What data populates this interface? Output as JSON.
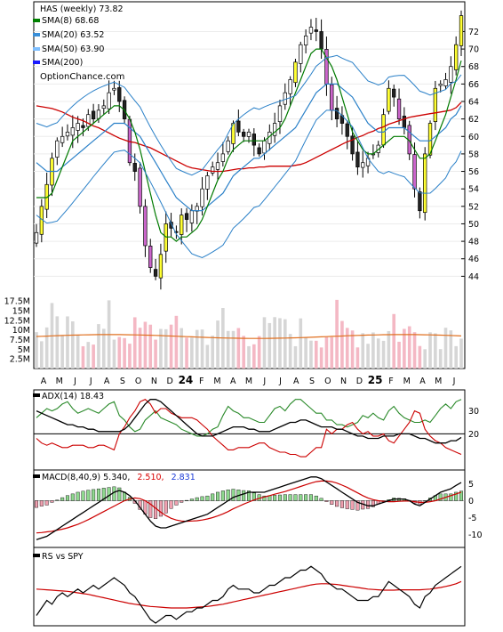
{
  "chart_data": [
    {
      "type": "candlestick",
      "title": "HAS (weekly) 73.82",
      "legend": [
        {
          "label": "SMA(8) 68.68",
          "color": "#008000"
        },
        {
          "label": "SMA(20) 63.52",
          "color": "#3a8fd8"
        },
        {
          "label": "SMA(50) 63.90",
          "color": "#7fbfff"
        },
        {
          "label": "SMA(200)",
          "color": "#1a1aff"
        }
      ],
      "watermark": "OptionChance.com",
      "y_ticks": [
        44,
        46,
        48,
        50,
        52,
        54,
        56,
        58,
        60,
        62,
        64,
        66,
        68,
        70,
        72
      ],
      "ylim": [
        42,
        75
      ],
      "x_labels": [
        "A",
        "M",
        "J",
        "J",
        "A",
        "S",
        "O",
        "N",
        "D",
        "24",
        "F",
        "M",
        "A",
        "M",
        "J",
        "J",
        "A",
        "S",
        "O",
        "N",
        "D",
        "25",
        "F",
        "M",
        "A",
        "M",
        "J"
      ],
      "close": [
        49.0,
        52.0,
        54.5,
        57.5,
        59.5,
        60.0,
        60.5,
        61.0,
        61.5,
        61.0,
        62.5,
        62.0,
        63.0,
        63.5,
        65.0,
        65.5,
        64.0,
        62.0,
        57.0,
        56.0,
        52.0,
        47.5,
        45.0,
        44.0,
        46.5,
        50.0,
        49.5,
        49.0,
        51.0,
        50.5,
        51.5,
        52.0,
        54.0,
        55.5,
        56.5,
        57.0,
        58.0,
        59.5,
        61.5,
        60.5,
        60.0,
        60.5,
        59.0,
        58.0,
        59.5,
        60.5,
        61.5,
        63.5,
        65.0,
        66.5,
        68.5,
        70.5,
        71.5,
        72.5,
        72.0,
        70.0,
        66.0,
        63.0,
        62.0,
        61.5,
        60.0,
        58.0,
        56.5,
        57.0,
        57.5,
        58.0,
        59.0,
        62.5,
        65.5,
        64.5,
        62.0,
        61.0,
        58.0,
        54.0,
        51.5,
        58.0,
        61.5,
        65.5,
        66.0,
        66.5,
        68.0,
        70.5,
        73.82
      ],
      "sma8": [
        53.0,
        53.0,
        53.0,
        53.5,
        55.0,
        56.5,
        58.0,
        59.5,
        60.0,
        60.5,
        61.0,
        61.5,
        62.0,
        62.5,
        63.0,
        63.5,
        63.5,
        63.0,
        62.0,
        60.5,
        58.5,
        56.0,
        53.5,
        51.0,
        49.0,
        48.5,
        48.5,
        48.0,
        48.5,
        48.5,
        49.0,
        49.5,
        50.5,
        52.0,
        53.5,
        55.0,
        56.0,
        57.5,
        58.5,
        59.0,
        59.5,
        59.5,
        59.5,
        59.5,
        59.5,
        60.0,
        60.5,
        61.0,
        62.0,
        63.5,
        65.0,
        66.5,
        68.0,
        69.5,
        70.0,
        70.0,
        69.0,
        68.0,
        66.5,
        64.5,
        62.5,
        60.5,
        59.5,
        58.5,
        58.0,
        58.0,
        58.5,
        59.0,
        59.5,
        60.0,
        60.0,
        60.0,
        59.5,
        58.5,
        57.5,
        57.5,
        58.0,
        59.5,
        61.0,
        62.5,
        64.5,
        66.5,
        68.68
      ],
      "sma20": [
        57.0,
        56.5,
        56.0,
        56.0,
        56.0,
        56.5,
        57.0,
        57.5,
        58.0,
        58.5,
        59.0,
        59.5,
        60.0,
        60.5,
        61.0,
        61.5,
        61.5,
        61.5,
        61.0,
        60.5,
        60.0,
        59.0,
        58.0,
        57.0,
        56.0,
        55.0,
        54.0,
        53.0,
        52.5,
        52.0,
        51.5,
        51.5,
        51.5,
        52.0,
        52.5,
        53.0,
        53.5,
        54.5,
        55.5,
        56.0,
        56.5,
        57.0,
        57.5,
        57.5,
        58.0,
        58.5,
        59.0,
        59.5,
        60.0,
        60.5,
        61.0,
        62.0,
        63.0,
        64.0,
        65.0,
        65.5,
        66.0,
        66.0,
        66.0,
        65.5,
        65.0,
        64.5,
        63.5,
        62.5,
        61.5,
        61.0,
        60.5,
        60.5,
        61.0,
        61.0,
        61.0,
        61.0,
        60.5,
        60.0,
        59.5,
        59.5,
        59.5,
        60.0,
        60.5,
        61.0,
        62.0,
        62.5,
        63.52
      ],
      "sma200": [
        63.5,
        63.4,
        63.3,
        63.2,
        63.0,
        62.8,
        62.5,
        62.2,
        62.0,
        61.8,
        61.5,
        61.2,
        61.0,
        60.7,
        60.4,
        60.1,
        59.8,
        59.6,
        59.4,
        59.3,
        59.1,
        58.9,
        58.7,
        58.4,
        58.1,
        57.8,
        57.5,
        57.2,
        56.9,
        56.6,
        56.4,
        56.3,
        56.2,
        56.1,
        56.0,
        56.0,
        56.0,
        56.1,
        56.2,
        56.3,
        56.3,
        56.4,
        56.4,
        56.5,
        56.5,
        56.6,
        56.6,
        56.6,
        56.6,
        56.6,
        56.7,
        56.8,
        57.0,
        57.3,
        57.6,
        57.9,
        58.2,
        58.5,
        58.8,
        59.1,
        59.4,
        59.6,
        59.9,
        60.1,
        60.4,
        60.6,
        60.9,
        61.1,
        61.4,
        61.6,
        61.8,
        62.0,
        62.2,
        62.3,
        62.4,
        62.5,
        62.6,
        62.7,
        62.8,
        62.9,
        63.0,
        63.3,
        63.9
      ],
      "volume_ticks": [
        "17.5M",
        "15M",
        "12.5M",
        "10M",
        "7.5M",
        "5M",
        "2.5M"
      ],
      "volume_ylim": [
        0,
        18
      ]
    },
    {
      "type": "line",
      "title": "ADX(14) 18.43",
      "y_ticks": [
        20,
        30
      ],
      "ylim": [
        5,
        38
      ],
      "adx": [
        30,
        29,
        28,
        27,
        26,
        25,
        24,
        24,
        23,
        23,
        22,
        22,
        21,
        21,
        21,
        21,
        21,
        22,
        24,
        27,
        30,
        33,
        35,
        35,
        34,
        32,
        30,
        28,
        26,
        24,
        22,
        20,
        19,
        19,
        19,
        20,
        21,
        22,
        23,
        23,
        23,
        22,
        22,
        21,
        21,
        21,
        22,
        23,
        24,
        25,
        25,
        26,
        26,
        25,
        24,
        23,
        23,
        23,
        22,
        22,
        21,
        20,
        19,
        19,
        18,
        18,
        18,
        19,
        19,
        19,
        20,
        20,
        20,
        19,
        18,
        18,
        17,
        16,
        16,
        16,
        17,
        17,
        18.43
      ],
      "plus_di": [
        27,
        29,
        31,
        30,
        31,
        33,
        34,
        31,
        29,
        30,
        31,
        30,
        29,
        31,
        33,
        34,
        28,
        26,
        23,
        21,
        22,
        26,
        28,
        30,
        27,
        26,
        25,
        24,
        22,
        21,
        20,
        19,
        19,
        20,
        22,
        23,
        28,
        32,
        30,
        29,
        27,
        27,
        26,
        25,
        25,
        28,
        31,
        32,
        30,
        33,
        35,
        35,
        33,
        31,
        29,
        29,
        26,
        26,
        24,
        24,
        23,
        24,
        25,
        28,
        27,
        29,
        27,
        26,
        30,
        32,
        29,
        27,
        26,
        25,
        25,
        26,
        25,
        28,
        31,
        33,
        31,
        34,
        35
      ],
      "minus_di": [
        18,
        16,
        15,
        16,
        15,
        14,
        14,
        15,
        15,
        15,
        14,
        14,
        15,
        15,
        14,
        13,
        20,
        23,
        27,
        30,
        34,
        35,
        33,
        29,
        31,
        31,
        29,
        28,
        27,
        27,
        27,
        26,
        24,
        22,
        19,
        17,
        15,
        13,
        13,
        14,
        14,
        14,
        15,
        16,
        16,
        14,
        13,
        12,
        12,
        11,
        11,
        10,
        10,
        12,
        14,
        14,
        22,
        20,
        22,
        22,
        24,
        25,
        22,
        20,
        21,
        19,
        19,
        20,
        17,
        16,
        19,
        22,
        25,
        30,
        29,
        22,
        19,
        17,
        16,
        14,
        13,
        12,
        11
      ]
    },
    {
      "type": "line",
      "title": "MACD(8,40,9) 5.340,",
      "title_values": [
        {
          "label": "2.510,",
          "color": "#d80000"
        },
        {
          "label": "2.831",
          "color": "#1a3ad8"
        }
      ],
      "y_ticks": [
        -10,
        -5,
        0,
        5
      ],
      "ylim": [
        -13,
        8
      ],
      "macd": [
        -11.5,
        -11.0,
        -10.5,
        -9.5,
        -8.5,
        -7.5,
        -6.5,
        -5.5,
        -4.5,
        -3.5,
        -2.5,
        -1.5,
        -0.5,
        0.5,
        1.5,
        2.5,
        3.0,
        2.5,
        1.5,
        0.0,
        -2.0,
        -4.0,
        -6.0,
        -7.5,
        -8.0,
        -8.0,
        -7.5,
        -7.0,
        -6.5,
        -6.0,
        -5.5,
        -5.0,
        -4.5,
        -4.0,
        -3.0,
        -2.0,
        -1.0,
        0.0,
        1.0,
        1.5,
        2.0,
        2.5,
        2.5,
        2.5,
        2.5,
        3.0,
        3.5,
        4.0,
        4.5,
        5.0,
        5.5,
        6.0,
        6.5,
        7.0,
        7.0,
        6.5,
        5.5,
        4.5,
        3.5,
        2.5,
        1.5,
        0.5,
        -0.5,
        -1.0,
        -1.5,
        -1.5,
        -1.0,
        -0.5,
        0.0,
        0.5,
        0.5,
        0.5,
        0.0,
        -1.0,
        -1.5,
        -0.5,
        0.5,
        1.5,
        2.5,
        3.0,
        3.5,
        4.5,
        5.34
      ],
      "signal": [
        -9.5,
        -9.4,
        -9.2,
        -9.0,
        -8.7,
        -8.4,
        -8.0,
        -7.5,
        -7.0,
        -6.3,
        -5.6,
        -4.8,
        -4.0,
        -3.2,
        -2.4,
        -1.6,
        -0.8,
        0.0,
        0.5,
        0.8,
        0.6,
        0.0,
        -1.0,
        -2.2,
        -3.4,
        -4.4,
        -5.2,
        -5.7,
        -6.0,
        -6.1,
        -6.0,
        -5.9,
        -5.7,
        -5.4,
        -5.0,
        -4.5,
        -3.9,
        -3.2,
        -2.4,
        -1.7,
        -1.0,
        -0.4,
        0.2,
        0.7,
        1.1,
        1.5,
        1.9,
        2.3,
        2.7,
        3.2,
        3.7,
        4.2,
        4.7,
        5.2,
        5.6,
        5.8,
        5.8,
        5.6,
        5.2,
        4.6,
        3.9,
        3.1,
        2.3,
        1.5,
        0.8,
        0.3,
        0.0,
        -0.2,
        -0.3,
        -0.3,
        -0.2,
        -0.1,
        -0.1,
        -0.3,
        -0.5,
        -0.5,
        -0.3,
        0.0,
        0.5,
        1.0,
        1.5,
        2.0,
        2.51
      ]
    },
    {
      "type": "line",
      "title": "RS vs SPY",
      "rs": [
        2,
        4,
        6,
        5,
        7,
        8,
        7,
        8,
        9,
        8,
        9,
        10,
        9,
        10,
        11,
        12,
        11,
        10,
        8,
        7,
        5,
        3,
        1,
        0,
        1,
        2,
        2,
        1,
        2,
        3,
        3,
        4,
        4,
        5,
        6,
        6,
        7,
        9,
        10,
        9,
        9,
        9,
        8,
        8,
        9,
        10,
        10,
        11,
        12,
        12,
        13,
        14,
        14,
        15,
        14,
        13,
        11,
        10,
        9,
        9,
        8,
        7,
        6,
        6,
        6,
        7,
        7,
        9,
        11,
        10,
        9,
        8,
        7,
        5,
        4,
        7,
        8,
        10,
        11,
        12,
        13,
        14,
        15
      ],
      "ma": [
        9.0,
        8.9,
        8.8,
        8.7,
        8.6,
        8.5,
        8.4,
        8.2,
        8.0,
        7.8,
        7.6,
        7.3,
        7.0,
        6.7,
        6.4,
        6.1,
        5.8,
        5.5,
        5.2,
        5.0,
        4.8,
        4.6,
        4.4,
        4.3,
        4.2,
        4.1,
        4.0,
        4.0,
        4.0,
        4.0,
        4.1,
        4.2,
        4.3,
        4.4,
        4.6,
        4.8,
        5.0,
        5.3,
        5.6,
        5.9,
        6.2,
        6.5,
        6.8,
        7.1,
        7.4,
        7.7,
        8.0,
        8.3,
        8.6,
        8.9,
        9.2,
        9.5,
        9.8,
        10.1,
        10.3,
        10.4,
        10.4,
        10.3,
        10.2,
        10.0,
        9.8,
        9.6,
        9.4,
        9.2,
        9.0,
        8.9,
        8.8,
        8.7,
        8.7,
        8.7,
        8.8,
        8.8,
        8.8,
        8.8,
        8.8,
        8.9,
        9.0,
        9.2,
        9.4,
        9.7,
        10.0,
        10.4,
        11.0
      ]
    }
  ]
}
